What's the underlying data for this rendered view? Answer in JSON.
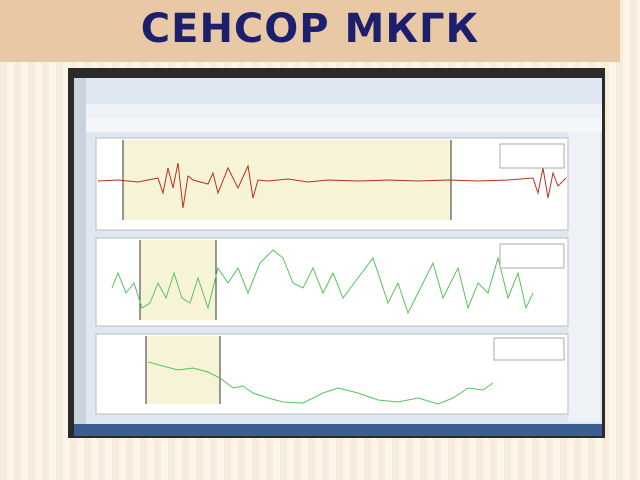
{
  "header": {
    "title": "СЕНСОР МКГК"
  }
}
